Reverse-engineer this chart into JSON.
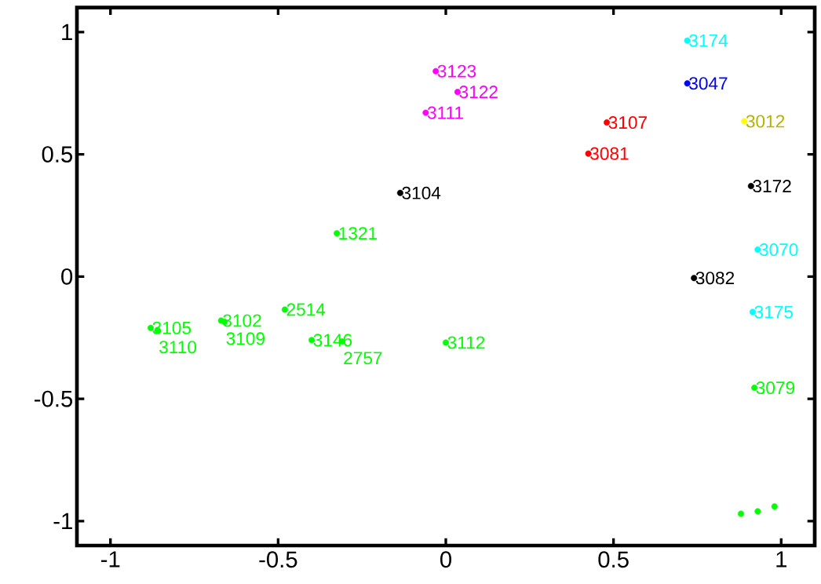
{
  "chart_data": {
    "type": "scatter",
    "marker": "circle",
    "xlim": [
      -1.1,
      1.1
    ],
    "ylim": [
      -1.1,
      1.1
    ],
    "xticks": [
      -1,
      -0.5,
      0,
      0.5,
      1
    ],
    "yticks": [
      -1,
      -0.5,
      0,
      0.5,
      1
    ],
    "series": [
      {
        "color": "#00ff00",
        "x": [
          -0.88,
          -0.86,
          -0.67,
          -0.66,
          -0.48,
          -0.4,
          -0.31,
          0.0,
          -0.325,
          0.92,
          0.88,
          0.93,
          0.98
        ],
        "values": [
          -0.21,
          -0.22,
          -0.18,
          -0.185,
          -0.135,
          -0.26,
          -0.265,
          -0.27,
          0.177,
          -0.455,
          -0.97,
          -0.96,
          -0.94
        ]
      },
      {
        "color": "#000000",
        "x": [
          -0.136,
          0.91,
          0.74
        ],
        "values": [
          0.342,
          0.37,
          -0.006
        ]
      },
      {
        "color": "#ff00ff",
        "x": [
          -0.03,
          0.035,
          -0.06
        ],
        "values": [
          0.84,
          0.755,
          0.67
        ]
      },
      {
        "color": "#ff0000",
        "x": [
          0.48,
          0.425
        ],
        "values": [
          0.63,
          0.503
        ]
      },
      {
        "color": "#00ffff",
        "x": [
          0.72,
          0.93,
          0.915
        ],
        "values": [
          0.965,
          0.11,
          -0.145
        ]
      },
      {
        "color": "#0000ff",
        "x": [
          0.72
        ],
        "values": [
          0.79
        ]
      },
      {
        "color": "#ffff00",
        "x": [
          0.89
        ],
        "values": [
          0.635
        ]
      }
    ],
    "annotations": [
      {
        "text": "3105",
        "x": -0.88,
        "y": -0.21
      },
      {
        "text": "3110",
        "x": -0.86,
        "y": -0.22
      },
      {
        "text": "3102",
        "x": -0.67,
        "y": -0.18
      },
      {
        "text": "3109",
        "x": -0.66,
        "y": -0.185
      },
      {
        "text": "2514",
        "x": -0.48,
        "y": -0.135
      },
      {
        "text": "3146",
        "x": -0.4,
        "y": -0.26
      },
      {
        "text": "2757",
        "x": -0.31,
        "y": -0.265
      },
      {
        "text": "3112",
        "x": 0.0,
        "y": -0.27
      },
      {
        "text": "1321",
        "x": -0.325,
        "y": 0.177
      },
      {
        "text": "3079",
        "x": 0.92,
        "y": -0.455
      },
      {
        "text": "3104",
        "x": -0.136,
        "y": 0.342
      },
      {
        "text": "3172",
        "x": 0.91,
        "y": 0.37
      },
      {
        "text": "3082",
        "x": 0.74,
        "y": -0.006
      },
      {
        "text": "3123",
        "x": -0.03,
        "y": 0.84
      },
      {
        "text": "3122",
        "x": 0.035,
        "y": 0.755
      },
      {
        "text": "3111",
        "x": -0.06,
        "y": 0.67
      },
      {
        "text": "3107",
        "x": 0.48,
        "y": 0.63
      },
      {
        "text": "3081",
        "x": 0.425,
        "y": 0.503
      },
      {
        "text": "3174",
        "x": 0.72,
        "y": 0.965
      },
      {
        "text": "3070",
        "x": 0.93,
        "y": 0.11
      },
      {
        "text": "3175",
        "x": 0.915,
        "y": -0.145
      },
      {
        "text": "3047",
        "x": 0.72,
        "y": 0.79
      },
      {
        "text": "3012",
        "x": 0.89,
        "y": 0.635
      }
    ]
  }
}
